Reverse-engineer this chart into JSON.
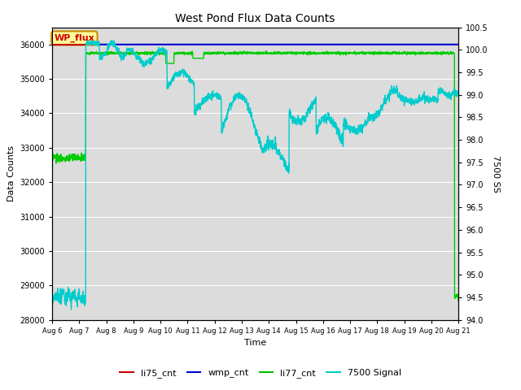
{
  "title": "West Pond Flux Data Counts",
  "ylabel_left": "Data Counts",
  "ylabel_right": "7500 SS",
  "xlabel": "Time",
  "ylim_left": [
    28000,
    36500
  ],
  "ylim_right": [
    94.0,
    100.5
  ],
  "yticks_left": [
    28000,
    29000,
    30000,
    31000,
    32000,
    33000,
    34000,
    35000,
    36000
  ],
  "yticks_right": [
    94.0,
    94.5,
    95.0,
    95.5,
    96.0,
    96.5,
    97.0,
    97.5,
    98.0,
    98.5,
    99.0,
    99.5,
    100.0,
    100.5
  ],
  "bg_color": "#dcdcdc",
  "legend_items": [
    "li75_cnt",
    "wmp_cnt",
    "li77_cnt",
    "7500 Signal"
  ],
  "legend_colors": [
    "#cc0000",
    "#0000cc",
    "#00bb00",
    "#00cccc"
  ],
  "annotation_text": "WP_flux",
  "annotation_color": "#cc0000",
  "annotation_bg": "#ffff99",
  "annotation_border": "#cc8800",
  "wmp_color": "#0000cc",
  "li77_color": "#00cc00",
  "signal_color": "#00cccc",
  "li75_color": "#cc0000",
  "trans_day": 1.25,
  "last_day": 14.85
}
